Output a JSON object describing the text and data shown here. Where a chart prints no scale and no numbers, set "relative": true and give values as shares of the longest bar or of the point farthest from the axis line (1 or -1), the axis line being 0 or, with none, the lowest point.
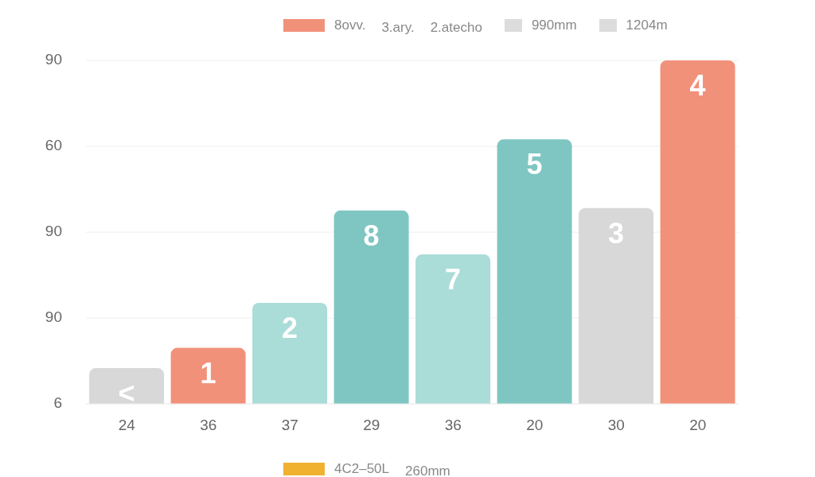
{
  "chart_data": {
    "type": "bar",
    "categories": [
      "24",
      "36",
      "37",
      "29",
      "36",
      "20",
      "30",
      "20"
    ],
    "values": [
      0.104,
      0.163,
      0.294,
      0.563,
      0.435,
      0.77,
      0.57,
      1
    ],
    "colors": [
      "#d8d8d8",
      "#f2917a",
      "#aadcd8",
      "#7fc6c2",
      "#aadcd8",
      "#7fc6c2",
      "#d8d8d8",
      "#f2917a"
    ],
    "relative": true,
    "grid": "y",
    "annotations": [
      "8ovv.",
      "3.ary.",
      "2.atecho",
      "990mm",
      "1204m",
      "4C2–50L",
      "260mm",
      "90",
      "60",
      "90",
      "90",
      "6",
      "<",
      "1",
      "2",
      "8",
      "7",
      "5",
      "3",
      "4"
    ]
  }
}
